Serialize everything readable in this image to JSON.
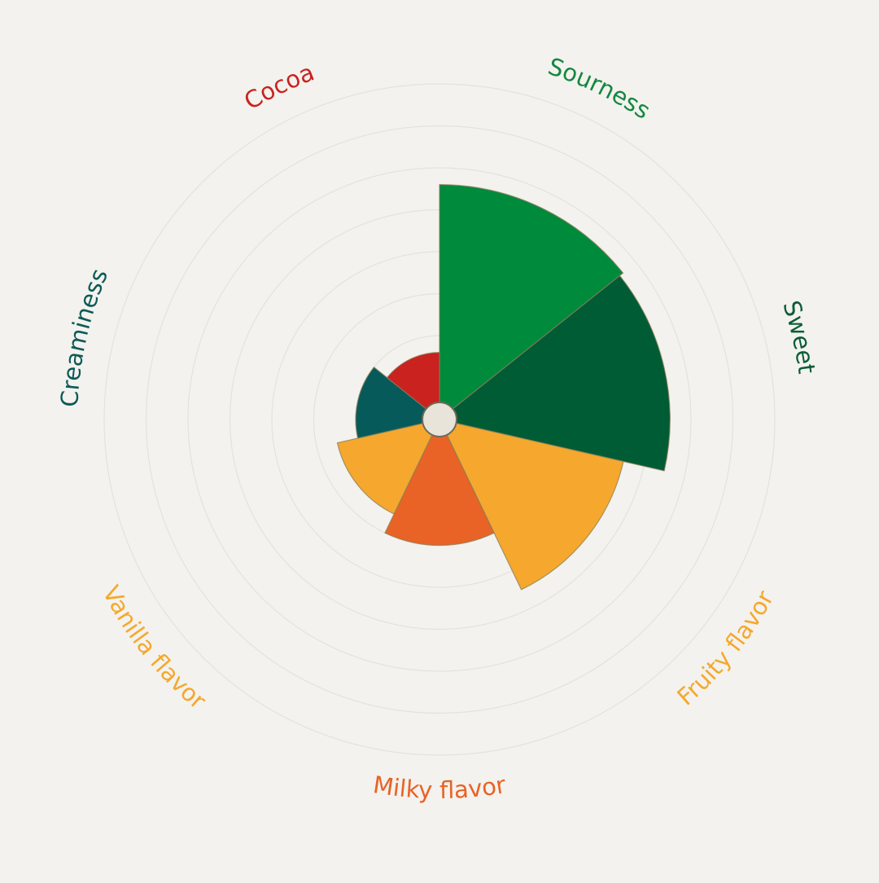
{
  "chart_data": {
    "type": "polar-area",
    "title": "",
    "rlim": [
      0,
      8
    ],
    "grid": true,
    "rings": 8,
    "categories": [
      "Sourness",
      "Sweet",
      "Fruity flavor",
      "Milky flavor",
      "Vanilla flavor",
      "Creaminess",
      "Cocoa"
    ],
    "values": [
      5.6,
      5.5,
      4.5,
      3.0,
      2.5,
      2.0,
      1.6
    ],
    "colors": [
      "#008a3c",
      "#005c35",
      "#f5a82d",
      "#e86325",
      "#f5a82d",
      "#065b5a",
      "#c9221f"
    ],
    "label_colors": [
      "#13873f",
      "#0a5c37",
      "#f5a82d",
      "#e86325",
      "#f5a82d",
      "#0c5a56",
      "#c9221f"
    ]
  }
}
